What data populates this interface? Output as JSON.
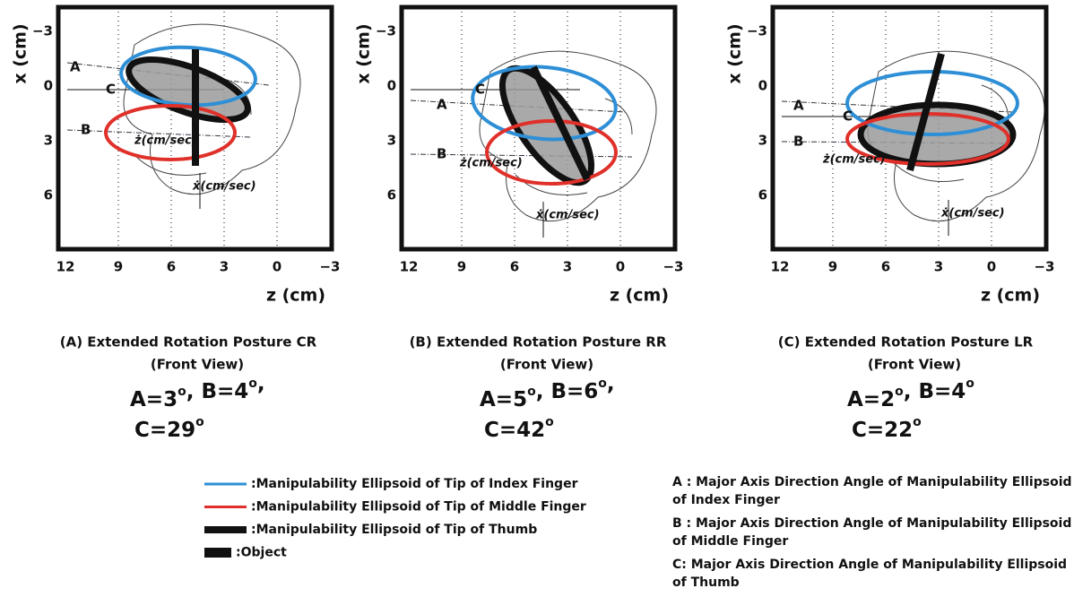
{
  "panels": [
    {
      "y_label": "x (cm)",
      "x_label": "z (cm)",
      "y_ticks": [
        "−3",
        "0",
        "3",
        "6"
      ],
      "x_ticks": [
        "12",
        "9",
        "6",
        "3",
        "0",
        "−3"
      ],
      "annotations": {
        "A": "A",
        "B": "B",
        "C": "C",
        "z_dot": "ż(cm/sec)",
        "x_dot": "ẋ(cm/sec)"
      },
      "caption": "(A) Extended Rotation Posture CR",
      "view": "(Front View)",
      "angles": [
        [
          {
            "text": "A=3",
            "sup": "o"
          },
          {
            "text": ", B=4",
            "sup": "o"
          },
          {
            "text": ","
          }
        ],
        [
          {
            "text": "C=29",
            "sup": "o"
          }
        ]
      ]
    },
    {
      "y_label": "x (cm)",
      "x_label": "z (cm)",
      "y_ticks": [
        "−3",
        "0",
        "3",
        "6"
      ],
      "x_ticks": [
        "12",
        "9",
        "6",
        "3",
        "0",
        "−3"
      ],
      "annotations": {
        "A": "A",
        "B": "B",
        "C": "C",
        "z_dot": "ż(cm/sec)",
        "x_dot": "ẋ(cm/sec)"
      },
      "caption": "(B) Extended Rotation Posture RR",
      "view": "(Front View)",
      "angles": [
        [
          {
            "text": "A=5",
            "sup": "o"
          },
          {
            "text": ", B=6",
            "sup": "o"
          },
          {
            "text": ","
          }
        ],
        [
          {
            "text": "C=42",
            "sup": "o"
          }
        ]
      ]
    },
    {
      "y_label": "x (cm)",
      "x_label": "z (cm)",
      "y_ticks": [
        "−3",
        "0",
        "3",
        "6"
      ],
      "x_ticks": [
        "12",
        "9",
        "6",
        "3",
        "0",
        "−3"
      ],
      "annotations": {
        "A": "A",
        "B": "B",
        "C": "C",
        "z_dot": "ż(cm/sec)",
        "x_dot": "ẋ(cm/sec)"
      },
      "caption": "(C) Extended Rotation Posture LR",
      "view": "(Front View)",
      "angles": [
        [
          {
            "text": "A=2",
            "sup": "o"
          },
          {
            "text": ", B=4",
            "sup": "o"
          }
        ],
        [
          {
            "text": "C=22",
            "sup": "o"
          }
        ]
      ]
    }
  ],
  "legend": [
    {
      "label": ":Manipulability Ellipsoid of Tip of Index Finger"
    },
    {
      "label": ":Manipulability Ellipsoid of Tip of Middle Finger"
    },
    {
      "label": ":Manipulability Ellipsoid of Tip of Thumb"
    },
    {
      "label": ":Object"
    }
  ],
  "definitions": [
    [
      "A : Major Axis Direction Angle of Manipulability Ellipsoid",
      "of Index Finger"
    ],
    [
      "B : Major Axis Direction Angle of Manipulability Ellipsoid",
      "of Middle Finger"
    ],
    [
      "C: Major Axis Direction Angle of Manipulability Ellipsoid",
      "of Thumb"
    ]
  ]
}
